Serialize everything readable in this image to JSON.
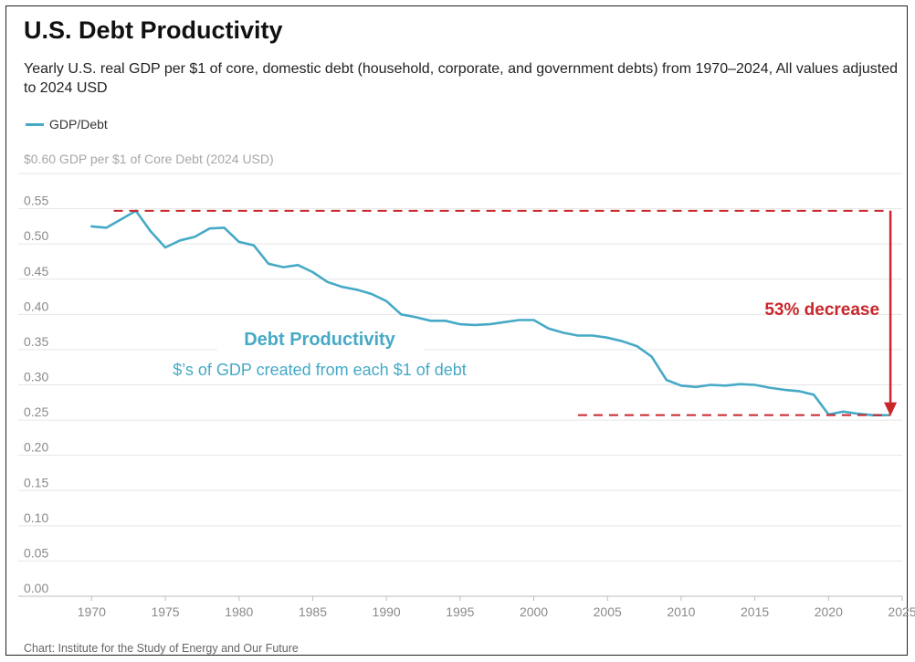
{
  "title": "U.S. Debt Productivity",
  "subtitle": "Yearly U.S. real GDP per $1 of core, domestic debt (household, corporate, and government debts) from 1970–2024, All values adjusted to 2024 USD",
  "source": "Chart: Institute for the Study of Energy and Our Future",
  "colors": {
    "line": "#46a9c6",
    "annotation": "#c8262a",
    "grid": "#e6e6e6",
    "axis_text": "#8a8a8a"
  },
  "chart_data": {
    "type": "line",
    "ylabel": "$0.60 GDP per $1 of Core Debt (2024 USD)",
    "xlim": [
      1967.5,
      2025
    ],
    "ylim": [
      0,
      0.6
    ],
    "x_ticks": [
      1970,
      1975,
      1980,
      1985,
      1990,
      1995,
      2000,
      2005,
      2010,
      2015,
      2020,
      2025
    ],
    "y_ticks": [
      0.0,
      0.05,
      0.1,
      0.15,
      0.2,
      0.25,
      0.3,
      0.35,
      0.4,
      0.45,
      0.5,
      0.55
    ],
    "y_tick_labels": [
      "0.00",
      "0.05",
      "0.10",
      "0.15",
      "0.20",
      "0.25",
      "0.30",
      "0.35",
      "0.40",
      "0.45",
      "0.50",
      "0.55"
    ],
    "grid": true,
    "legend_position": "top-left",
    "series": [
      {
        "name": "GDP/Debt",
        "x": [
          1970,
          1971,
          1972,
          1973,
          1974,
          1975,
          1976,
          1977,
          1978,
          1979,
          1980,
          1981,
          1982,
          1983,
          1984,
          1985,
          1986,
          1987,
          1988,
          1989,
          1990,
          1991,
          1992,
          1993,
          1994,
          1995,
          1996,
          1997,
          1998,
          1999,
          2000,
          2001,
          2002,
          2003,
          2004,
          2005,
          2006,
          2007,
          2008,
          2009,
          2010,
          2011,
          2012,
          2013,
          2014,
          2015,
          2016,
          2017,
          2018,
          2019,
          2020,
          2021,
          2022,
          2023,
          2024
        ],
        "values": [
          0.525,
          0.523,
          0.535,
          0.547,
          0.518,
          0.495,
          0.505,
          0.51,
          0.522,
          0.523,
          0.503,
          0.498,
          0.472,
          0.467,
          0.47,
          0.46,
          0.446,
          0.439,
          0.435,
          0.429,
          0.419,
          0.4,
          0.396,
          0.391,
          0.391,
          0.386,
          0.385,
          0.386,
          0.389,
          0.392,
          0.392,
          0.38,
          0.374,
          0.37,
          0.37,
          0.367,
          0.362,
          0.355,
          0.34,
          0.307,
          0.299,
          0.297,
          0.3,
          0.299,
          0.301,
          0.3,
          0.296,
          0.293,
          0.291,
          0.286,
          0.258,
          0.262,
          0.259,
          0.257,
          0.257
        ]
      }
    ],
    "annotations": {
      "inline_title": "Debt Productivity",
      "inline_subtitle": "$’s of GDP created from each $1 of debt",
      "decrease_label": "53% decrease",
      "peak_value": 0.547,
      "trough_value": 0.257,
      "peak_line_x": [
        1971.5,
        2024.2
      ],
      "trough_line_x": [
        2003,
        2024.2
      ],
      "arrow_x": 2024.2
    }
  }
}
